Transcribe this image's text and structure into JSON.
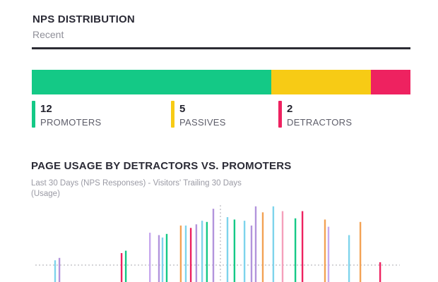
{
  "nps": {
    "title": "NPS DISTRIBUTION",
    "subtitle": "Recent",
    "segments": [
      {
        "key": "promoters",
        "count": "12",
        "label": "PROMOTERS",
        "color": "#14c986"
      },
      {
        "key": "passives",
        "count": "5",
        "label": "PASSIVES",
        "color": "#f7cb15"
      },
      {
        "key": "detractors",
        "count": "2",
        "label": "DETRACTORS",
        "color": "#ee2260"
      }
    ]
  },
  "usage": {
    "title": "PAGE USAGE BY DETRACTORS VS. PROMOTERS",
    "subtitle": "Last 30 Days (NPS Responses) - Visitors' Trailing 30 Days (Usage)"
  },
  "chart_data": [
    {
      "type": "bar",
      "orientation": "horizontal-stacked",
      "categories": [
        "PROMOTERS",
        "PASSIVES",
        "DETRACTORS"
      ],
      "values": [
        12,
        5,
        2
      ],
      "colors": [
        "#14c986",
        "#f7cb15",
        "#ee2260"
      ],
      "title": "NPS DISTRIBUTION",
      "subtitle": "Recent"
    },
    {
      "type": "bar",
      "title": "PAGE USAGE BY DETRACTORS VS. PROMOTERS",
      "subtitle": "Last 30 Days (NPS Responses) - Visitors' Trailing 30 Days (Usage)",
      "axis": "diverging from center",
      "bars": [
        {
          "pos": -0.893,
          "value": 0.08,
          "color": "#7ed4ec"
        },
        {
          "pos": -0.87,
          "value": 0.12,
          "color": "#b294dc"
        },
        {
          "pos": -0.534,
          "value": 0.2,
          "color": "#ee2260"
        },
        {
          "pos": -0.511,
          "value": 0.24,
          "color": "#14c986"
        },
        {
          "pos": -0.381,
          "value": 0.54,
          "color": "#c7a9ee"
        },
        {
          "pos": -0.332,
          "value": 0.5,
          "color": "#b294dc"
        },
        {
          "pos": -0.313,
          "value": 0.46,
          "color": "#7ed4ec"
        },
        {
          "pos": -0.29,
          "value": 0.52,
          "color": "#14c986"
        },
        {
          "pos": -0.214,
          "value": 0.66,
          "color": "#f3a254"
        },
        {
          "pos": -0.187,
          "value": 0.66,
          "color": "#7ed4ec"
        },
        {
          "pos": -0.16,
          "value": 0.62,
          "color": "#ee2260"
        },
        {
          "pos": -0.13,
          "value": 0.68,
          "color": "#b294dc"
        },
        {
          "pos": -0.099,
          "value": 0.74,
          "color": "#7ed4ec"
        },
        {
          "pos": -0.073,
          "value": 0.72,
          "color": "#14c986"
        },
        {
          "pos": -0.038,
          "value": 0.94,
          "color": "#b294dc"
        },
        {
          "pos": 0.038,
          "value": 0.8,
          "color": "#7ed4ec"
        },
        {
          "pos": 0.076,
          "value": 0.76,
          "color": "#14c986"
        },
        {
          "pos": 0.13,
          "value": 0.74,
          "color": "#7ed4ec"
        },
        {
          "pos": 0.168,
          "value": 0.66,
          "color": "#b294dc"
        },
        {
          "pos": 0.191,
          "value": 0.98,
          "color": "#b294dc"
        },
        {
          "pos": 0.229,
          "value": 0.88,
          "color": "#f3a254"
        },
        {
          "pos": 0.286,
          "value": 0.98,
          "color": "#7ed4ec"
        },
        {
          "pos": 0.336,
          "value": 0.9,
          "color": "#f5a0bb"
        },
        {
          "pos": 0.405,
          "value": 0.78,
          "color": "#14c986"
        },
        {
          "pos": 0.443,
          "value": 0.9,
          "color": "#ee2260"
        },
        {
          "pos": 0.565,
          "value": 0.76,
          "color": "#f3a254"
        },
        {
          "pos": 0.584,
          "value": 0.64,
          "color": "#c7a9ee"
        },
        {
          "pos": 0.695,
          "value": 0.5,
          "color": "#7ed4ec"
        },
        {
          "pos": 0.756,
          "value": 0.72,
          "color": "#f3a254"
        },
        {
          "pos": 0.863,
          "value": 0.04,
          "color": "#ee2260"
        }
      ]
    }
  ]
}
